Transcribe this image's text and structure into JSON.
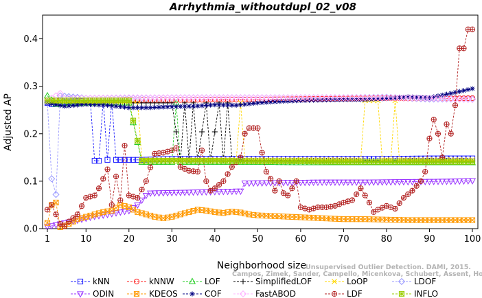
{
  "chart_data": {
    "type": "line",
    "title": "Arrhythmia_withoutdupl_02_v08",
    "xlabel": "Neighborhood size",
    "ylabel": "Adjusted AP",
    "xlim": [
      0,
      101
    ],
    "ylim": [
      0,
      0.45
    ],
    "xticks": [
      1,
      10,
      20,
      30,
      40,
      50,
      60,
      70,
      80,
      90,
      100
    ],
    "yticks": [
      0.0,
      0.1,
      0.2,
      0.3,
      0.4
    ],
    "ytick_labels": [
      "0.0",
      "0.1",
      "0.2",
      "0.3",
      "0.4"
    ],
    "grid": false,
    "legend_position": "bottom",
    "credit_lines": [
      "Unsupervised Outlier Detection. DAMI, 2015.",
      "Campos, Zimek, Sander, Campello, Micenkova, Schubert, Assent, Houle"
    ],
    "series": [
      {
        "name": "kNN",
        "color": "#1a1aff",
        "marker": "square",
        "points": [
          [
            1,
            0.265
          ],
          [
            2,
            0.262
          ],
          [
            5,
            0.267
          ],
          [
            11,
            0.27
          ],
          [
            12,
            0.143
          ],
          [
            13,
            0.143
          ],
          [
            14,
            0.27
          ],
          [
            15,
            0.145
          ],
          [
            16,
            0.27
          ],
          [
            17,
            0.145
          ],
          [
            18,
            0.145
          ],
          [
            23,
            0.145
          ],
          [
            30,
            0.147
          ],
          [
            40,
            0.147
          ],
          [
            50,
            0.147
          ],
          [
            60,
            0.147
          ],
          [
            70,
            0.147
          ],
          [
            80,
            0.147
          ],
          [
            90,
            0.148
          ],
          [
            100,
            0.148
          ]
        ]
      },
      {
        "name": "kNNW",
        "color": "#ff1a1a",
        "marker": "circle",
        "points": [
          [
            1,
            0.27
          ],
          [
            10,
            0.27
          ],
          [
            20,
            0.271
          ],
          [
            30,
            0.271
          ],
          [
            40,
            0.272
          ],
          [
            50,
            0.272
          ],
          [
            60,
            0.273
          ],
          [
            70,
            0.274
          ],
          [
            80,
            0.275
          ],
          [
            90,
            0.274
          ],
          [
            100,
            0.275
          ]
        ]
      },
      {
        "name": "LOF",
        "color": "#22cc22",
        "marker": "triangle",
        "points": [
          [
            1,
            0.28
          ],
          [
            3,
            0.262
          ],
          [
            10,
            0.265
          ],
          [
            20,
            0.265
          ],
          [
            23,
            0.14
          ],
          [
            30,
            0.14
          ],
          [
            31,
            0.265
          ],
          [
            32,
            0.14
          ],
          [
            40,
            0.14
          ],
          [
            50,
            0.14
          ],
          [
            60,
            0.139
          ],
          [
            70,
            0.139
          ],
          [
            80,
            0.139
          ],
          [
            90,
            0.139
          ],
          [
            100,
            0.139
          ]
        ]
      },
      {
        "name": "SimplifiedLOF",
        "color": "#000000",
        "marker": "plus",
        "points": [
          [
            1,
            0.265
          ],
          [
            20,
            0.265
          ],
          [
            30,
            0.265
          ],
          [
            32,
            0.143
          ],
          [
            33,
            0.265
          ],
          [
            34,
            0.143
          ],
          [
            35,
            0.265
          ],
          [
            36,
            0.143
          ],
          [
            38,
            0.265
          ],
          [
            39,
            0.143
          ],
          [
            41,
            0.265
          ],
          [
            42,
            0.143
          ],
          [
            43,
            0.265
          ],
          [
            44,
            0.143
          ],
          [
            60,
            0.143
          ],
          [
            80,
            0.143
          ],
          [
            100,
            0.142
          ]
        ]
      },
      {
        "name": "LoOP",
        "color": "#ffd700",
        "marker": "cross",
        "points": [
          [
            1,
            0.268
          ],
          [
            20,
            0.268
          ],
          [
            22,
            0.27
          ],
          [
            23,
            0.145
          ],
          [
            40,
            0.145
          ],
          [
            45,
            0.145
          ],
          [
            46,
            0.265
          ],
          [
            47,
            0.145
          ],
          [
            70,
            0.145
          ],
          [
            74,
            0.145
          ],
          [
            75,
            0.27
          ],
          [
            78,
            0.27
          ],
          [
            79,
            0.145
          ],
          [
            81,
            0.145
          ],
          [
            82,
            0.27
          ],
          [
            83,
            0.145
          ],
          [
            100,
            0.145
          ]
        ]
      },
      {
        "name": "LDOF",
        "color": "#9999ff",
        "marker": "diamond",
        "points": [
          [
            1,
            0.266
          ],
          [
            2,
            0.105
          ],
          [
            3,
            0.072
          ],
          [
            4,
            0.28
          ],
          [
            10,
            0.275
          ],
          [
            20,
            0.275
          ],
          [
            30,
            0.276
          ],
          [
            40,
            0.276
          ],
          [
            50,
            0.276
          ],
          [
            60,
            0.276
          ],
          [
            70,
            0.276
          ],
          [
            80,
            0.277
          ],
          [
            90,
            0.273
          ],
          [
            100,
            0.273
          ]
        ]
      },
      {
        "name": "ODIN",
        "color": "#9933ff",
        "marker": "triangle-down",
        "points": [
          [
            1,
            0.004
          ],
          [
            2,
            0.006
          ],
          [
            3,
            0.008
          ],
          [
            5,
            0.012
          ],
          [
            8,
            0.018
          ],
          [
            10,
            0.022
          ],
          [
            12,
            0.026
          ],
          [
            15,
            0.03
          ],
          [
            18,
            0.035
          ],
          [
            20,
            0.038
          ],
          [
            22,
            0.05
          ],
          [
            24,
            0.07
          ],
          [
            25,
            0.075
          ],
          [
            30,
            0.076
          ],
          [
            35,
            0.077
          ],
          [
            40,
            0.078
          ],
          [
            45,
            0.079
          ],
          [
            46,
            0.079
          ],
          [
            47,
            0.096
          ],
          [
            55,
            0.097
          ],
          [
            65,
            0.098
          ],
          [
            75,
            0.098
          ],
          [
            85,
            0.099
          ],
          [
            95,
            0.1
          ],
          [
            100,
            0.101
          ]
        ]
      },
      {
        "name": "KDEOS",
        "color": "#ff9900",
        "marker": "square-x",
        "points": [
          [
            1,
            0.012
          ],
          [
            2,
            0.05
          ],
          [
            3,
            0.055
          ],
          [
            4,
            0.003
          ],
          [
            6,
            0.01
          ],
          [
            8,
            0.02
          ],
          [
            10,
            0.025
          ],
          [
            12,
            0.03
          ],
          [
            14,
            0.035
          ],
          [
            16,
            0.038
          ],
          [
            18,
            0.05
          ],
          [
            20,
            0.045
          ],
          [
            22,
            0.035
          ],
          [
            24,
            0.03
          ],
          [
            26,
            0.025
          ],
          [
            28,
            0.022
          ],
          [
            30,
            0.025
          ],
          [
            32,
            0.03
          ],
          [
            34,
            0.035
          ],
          [
            36,
            0.04
          ],
          [
            38,
            0.038
          ],
          [
            40,
            0.035
          ],
          [
            42,
            0.033
          ],
          [
            44,
            0.036
          ],
          [
            46,
            0.034
          ],
          [
            48,
            0.03
          ],
          [
            50,
            0.028
          ],
          [
            55,
            0.026
          ],
          [
            60,
            0.024
          ],
          [
            65,
            0.022
          ],
          [
            70,
            0.02
          ],
          [
            75,
            0.02
          ],
          [
            80,
            0.019
          ],
          [
            85,
            0.018
          ],
          [
            90,
            0.018
          ],
          [
            95,
            0.018
          ],
          [
            100,
            0.018
          ]
        ]
      },
      {
        "name": "COF",
        "color": "#000080",
        "marker": "star",
        "points": [
          [
            1,
            0.265
          ],
          [
            5,
            0.258
          ],
          [
            10,
            0.262
          ],
          [
            15,
            0.26
          ],
          [
            20,
            0.255
          ],
          [
            25,
            0.255
          ],
          [
            30,
            0.257
          ],
          [
            35,
            0.258
          ],
          [
            40,
            0.261
          ],
          [
            45,
            0.26
          ],
          [
            50,
            0.265
          ],
          [
            55,
            0.268
          ],
          [
            60,
            0.27
          ],
          [
            65,
            0.271
          ],
          [
            70,
            0.272
          ],
          [
            75,
            0.272
          ],
          [
            80,
            0.274
          ],
          [
            85,
            0.278
          ],
          [
            90,
            0.276
          ],
          [
            95,
            0.285
          ],
          [
            100,
            0.295
          ]
        ]
      },
      {
        "name": "FastABOD",
        "color": "#ffb3ff",
        "marker": "diamond",
        "points": [
          [
            1,
            0.27
          ],
          [
            4,
            0.285
          ],
          [
            5,
            0.275
          ],
          [
            10,
            0.275
          ],
          [
            20,
            0.276
          ],
          [
            30,
            0.276
          ],
          [
            40,
            0.276
          ],
          [
            50,
            0.276
          ],
          [
            60,
            0.276
          ],
          [
            70,
            0.276
          ],
          [
            80,
            0.276
          ],
          [
            90,
            0.275
          ],
          [
            100,
            0.272
          ]
        ]
      },
      {
        "name": "LDF",
        "color": "#b22222",
        "marker": "circle-plus",
        "points": [
          [
            1,
            0.04
          ],
          [
            2,
            0.05
          ],
          [
            3,
            0.03
          ],
          [
            4,
            0.01
          ],
          [
            5,
            0.005
          ],
          [
            6,
            0.015
          ],
          [
            8,
            0.03
          ],
          [
            10,
            0.065
          ],
          [
            12,
            0.07
          ],
          [
            13,
            0.085
          ],
          [
            14,
            0.105
          ],
          [
            15,
            0.125
          ],
          [
            16,
            0.05
          ],
          [
            17,
            0.11
          ],
          [
            18,
            0.06
          ],
          [
            19,
            0.175
          ],
          [
            20,
            0.07
          ],
          [
            22,
            0.065
          ],
          [
            24,
            0.1
          ],
          [
            26,
            0.158
          ],
          [
            28,
            0.16
          ],
          [
            30,
            0.165
          ],
          [
            31,
            0.17
          ],
          [
            32,
            0.13
          ],
          [
            34,
            0.122
          ],
          [
            36,
            0.12
          ],
          [
            37,
            0.165
          ],
          [
            38,
            0.1
          ],
          [
            39,
            0.08
          ],
          [
            40,
            0.085
          ],
          [
            42,
            0.1
          ],
          [
            44,
            0.13
          ],
          [
            46,
            0.15
          ],
          [
            47,
            0.2
          ],
          [
            48,
            0.212
          ],
          [
            50,
            0.212
          ],
          [
            51,
            0.16
          ],
          [
            52,
            0.12
          ],
          [
            53,
            0.105
          ],
          [
            54,
            0.08
          ],
          [
            55,
            0.1
          ],
          [
            56,
            0.075
          ],
          [
            57,
            0.07
          ],
          [
            58,
            0.085
          ],
          [
            59,
            0.1
          ],
          [
            60,
            0.045
          ],
          [
            62,
            0.04
          ],
          [
            64,
            0.045
          ],
          [
            66,
            0.045
          ],
          [
            68,
            0.048
          ],
          [
            70,
            0.055
          ],
          [
            72,
            0.06
          ],
          [
            74,
            0.085
          ],
          [
            76,
            0.055
          ],
          [
            77,
            0.035
          ],
          [
            78,
            0.04
          ],
          [
            80,
            0.048
          ],
          [
            82,
            0.042
          ],
          [
            84,
            0.065
          ],
          [
            86,
            0.08
          ],
          [
            88,
            0.1
          ],
          [
            89,
            0.12
          ],
          [
            90,
            0.19
          ],
          [
            91,
            0.23
          ],
          [
            92,
            0.2
          ],
          [
            93,
            0.15
          ],
          [
            94,
            0.22
          ],
          [
            95,
            0.2
          ],
          [
            96,
            0.26
          ],
          [
            97,
            0.38
          ],
          [
            98,
            0.38
          ],
          [
            99,
            0.42
          ],
          [
            100,
            0.42
          ]
        ]
      },
      {
        "name": "INFLO",
        "color": "#99cc00",
        "marker": "square-star",
        "points": [
          [
            1,
            0.27
          ],
          [
            10,
            0.27
          ],
          [
            20,
            0.27
          ],
          [
            23,
            0.143
          ],
          [
            30,
            0.143
          ],
          [
            40,
            0.143
          ],
          [
            50,
            0.142
          ],
          [
            60,
            0.142
          ],
          [
            70,
            0.141
          ],
          [
            80,
            0.141
          ],
          [
            90,
            0.141
          ],
          [
            100,
            0.141
          ]
        ]
      }
    ]
  }
}
